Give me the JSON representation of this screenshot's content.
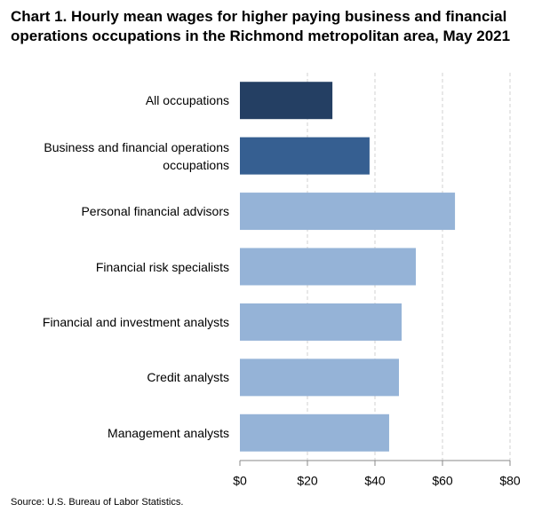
{
  "chart_data": {
    "type": "hbar",
    "title": "Chart 1. Hourly mean wages for higher paying business and financial operations occupations in the Richmond metropolitan area, May 2021",
    "categories": [
      "All occupations",
      "Business and financial operations occupations",
      "Personal financial advisors",
      "Financial risk specialists",
      "Financial and investment analysts",
      "Credit analysts",
      "Management analysts"
    ],
    "values": [
      27.4,
      38.4,
      63.7,
      52.1,
      47.9,
      47.1,
      44.2
    ],
    "colors": [
      "#243f63",
      "#365f91",
      "#95b3d7",
      "#95b3d7",
      "#95b3d7",
      "#95b3d7",
      "#95b3d7"
    ],
    "xlim": [
      0,
      80
    ],
    "xticks": [
      {
        "value": 0,
        "label": "$0"
      },
      {
        "value": 20,
        "label": "$20"
      },
      {
        "value": 40,
        "label": "$40"
      },
      {
        "value": 60,
        "label": "$60"
      },
      {
        "value": 80,
        "label": "$80"
      }
    ],
    "grid": true,
    "source": "Source: U.S. Bureau of Labor Statistics."
  }
}
